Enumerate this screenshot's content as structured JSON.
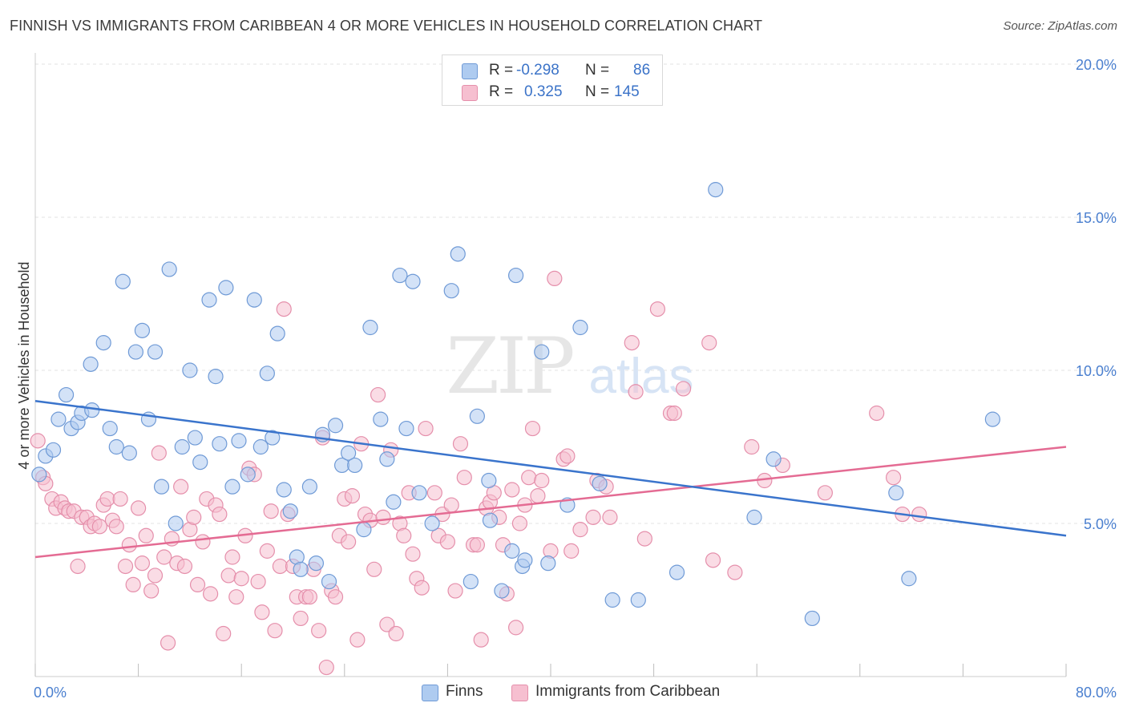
{
  "title": "FINNISH VS IMMIGRANTS FROM CARIBBEAN 4 OR MORE VEHICLES IN HOUSEHOLD CORRELATION CHART",
  "source": "Source: ZipAtlas.com",
  "watermark": {
    "zip": "ZIP",
    "atlas": "atlas"
  },
  "colors": {
    "finns_fill": "#aecbf0",
    "finns_stroke": "#6f9ad6",
    "finns_line": "#3a74cc",
    "carib_fill": "#f6bfd0",
    "carib_stroke": "#e58fab",
    "carib_line": "#e46b93",
    "grid": "#e3e3e3",
    "axis_text": "#4a7fcf"
  },
  "legend": {
    "rows": [
      {
        "r_label": "R =",
        "r_value": "-0.298",
        "n_label": "N =",
        "n_value": "86"
      },
      {
        "r_label": "R =",
        "r_value": "0.325",
        "n_label": "N =",
        "n_value": "145"
      }
    ]
  },
  "bottom_legend": {
    "finns": "Finns",
    "carib": "Immigrants from Caribbean"
  },
  "chart_data": {
    "type": "scatter",
    "xlabel": "",
    "ylabel": "4 or more Vehicles in Household",
    "xlim": [
      0,
      80
    ],
    "ylim": [
      0,
      20
    ],
    "x_tick_labels": {
      "left": "0.0%",
      "right": "80.0%"
    },
    "y_tick_labels": [
      "5.0%",
      "10.0%",
      "15.0%",
      "20.0%"
    ],
    "y_ticks": [
      5,
      10,
      15,
      20
    ],
    "grid": true,
    "legend_position": "top-center",
    "series": [
      {
        "name": "Finns",
        "trend": {
          "x": [
            0,
            80
          ],
          "y": [
            9.0,
            4.6
          ]
        },
        "points": [
          [
            0.3,
            6.6
          ],
          [
            0.8,
            7.2
          ],
          [
            1.4,
            7.4
          ],
          [
            1.8,
            8.4
          ],
          [
            2.4,
            9.2
          ],
          [
            2.8,
            8.1
          ],
          [
            3.3,
            8.3
          ],
          [
            3.6,
            8.6
          ],
          [
            4.4,
            8.7
          ],
          [
            4.3,
            10.2
          ],
          [
            5.3,
            10.9
          ],
          [
            5.8,
            8.1
          ],
          [
            6.3,
            7.5
          ],
          [
            6.8,
            12.9
          ],
          [
            7.3,
            7.3
          ],
          [
            7.8,
            10.6
          ],
          [
            8.3,
            11.3
          ],
          [
            8.8,
            8.4
          ],
          [
            9.3,
            10.6
          ],
          [
            9.8,
            6.2
          ],
          [
            10.4,
            13.3
          ],
          [
            10.9,
            5.0
          ],
          [
            11.4,
            7.5
          ],
          [
            12.0,
            10.0
          ],
          [
            12.4,
            7.8
          ],
          [
            12.8,
            7.0
          ],
          [
            13.5,
            12.3
          ],
          [
            14.0,
            9.8
          ],
          [
            14.3,
            7.6
          ],
          [
            14.8,
            12.7
          ],
          [
            15.3,
            6.2
          ],
          [
            15.8,
            7.7
          ],
          [
            16.5,
            6.6
          ],
          [
            17.0,
            12.3
          ],
          [
            17.5,
            7.5
          ],
          [
            18.0,
            9.9
          ],
          [
            18.4,
            7.8
          ],
          [
            18.8,
            11.2
          ],
          [
            19.3,
            6.1
          ],
          [
            19.8,
            5.4
          ],
          [
            20.3,
            3.9
          ],
          [
            20.6,
            3.5
          ],
          [
            21.3,
            6.2
          ],
          [
            21.8,
            3.7
          ],
          [
            22.3,
            7.9
          ],
          [
            22.8,
            3.1
          ],
          [
            23.3,
            8.2
          ],
          [
            23.8,
            6.9
          ],
          [
            24.3,
            7.3
          ],
          [
            24.8,
            6.9
          ],
          [
            25.5,
            4.8
          ],
          [
            26.0,
            11.4
          ],
          [
            26.8,
            8.4
          ],
          [
            27.3,
            7.1
          ],
          [
            27.8,
            5.7
          ],
          [
            28.3,
            13.1
          ],
          [
            28.8,
            8.1
          ],
          [
            29.3,
            12.9
          ],
          [
            29.8,
            6.0
          ],
          [
            30.8,
            5.0
          ],
          [
            32.3,
            12.6
          ],
          [
            32.8,
            13.8
          ],
          [
            33.8,
            3.1
          ],
          [
            34.3,
            8.5
          ],
          [
            35.2,
            6.4
          ],
          [
            35.3,
            5.1
          ],
          [
            36.2,
            2.8
          ],
          [
            37.3,
            13.1
          ],
          [
            37.0,
            4.1
          ],
          [
            37.8,
            3.6
          ],
          [
            38.0,
            3.8
          ],
          [
            39.3,
            10.6
          ],
          [
            39.8,
            3.7
          ],
          [
            41.3,
            5.6
          ],
          [
            42.3,
            11.4
          ],
          [
            43.8,
            6.3
          ],
          [
            44.8,
            2.5
          ],
          [
            46.8,
            2.5
          ],
          [
            49.8,
            3.4
          ],
          [
            52.8,
            15.9
          ],
          [
            55.8,
            5.2
          ],
          [
            57.3,
            7.1
          ],
          [
            60.3,
            1.9
          ],
          [
            66.8,
            6.0
          ],
          [
            67.8,
            3.2
          ],
          [
            74.3,
            8.4
          ]
        ]
      },
      {
        "name": "Immigrants from Caribbean",
        "trend": {
          "x": [
            0,
            80
          ],
          "y": [
            3.9,
            7.5
          ]
        },
        "points": [
          [
            0.2,
            7.7
          ],
          [
            0.6,
            6.5
          ],
          [
            0.8,
            6.3
          ],
          [
            1.3,
            5.8
          ],
          [
            1.6,
            5.5
          ],
          [
            2.0,
            5.7
          ],
          [
            2.3,
            5.5
          ],
          [
            2.6,
            5.4
          ],
          [
            3.0,
            5.4
          ],
          [
            3.3,
            3.6
          ],
          [
            3.6,
            5.2
          ],
          [
            4.0,
            5.2
          ],
          [
            4.3,
            4.9
          ],
          [
            4.6,
            5.0
          ],
          [
            5.0,
            4.9
          ],
          [
            5.3,
            5.6
          ],
          [
            5.6,
            5.8
          ],
          [
            6.0,
            5.1
          ],
          [
            6.3,
            4.9
          ],
          [
            6.6,
            5.8
          ],
          [
            7.0,
            3.6
          ],
          [
            7.3,
            4.3
          ],
          [
            7.6,
            3.0
          ],
          [
            8.0,
            5.5
          ],
          [
            8.3,
            3.7
          ],
          [
            8.6,
            4.6
          ],
          [
            9.0,
            2.8
          ],
          [
            9.3,
            3.3
          ],
          [
            9.6,
            7.3
          ],
          [
            10.0,
            3.9
          ],
          [
            10.3,
            1.1
          ],
          [
            10.6,
            4.5
          ],
          [
            11.0,
            3.7
          ],
          [
            11.3,
            6.2
          ],
          [
            11.6,
            3.6
          ],
          [
            12.0,
            4.8
          ],
          [
            12.3,
            5.2
          ],
          [
            12.6,
            3.0
          ],
          [
            13.0,
            4.4
          ],
          [
            13.3,
            5.8
          ],
          [
            13.6,
            2.7
          ],
          [
            14.0,
            5.6
          ],
          [
            14.3,
            5.3
          ],
          [
            14.6,
            1.4
          ],
          [
            15.0,
            3.3
          ],
          [
            15.3,
            3.9
          ],
          [
            15.6,
            2.6
          ],
          [
            16.0,
            3.2
          ],
          [
            16.3,
            4.6
          ],
          [
            16.6,
            6.8
          ],
          [
            17.0,
            6.6
          ],
          [
            17.3,
            3.1
          ],
          [
            17.6,
            2.1
          ],
          [
            18.0,
            4.1
          ],
          [
            18.3,
            5.4
          ],
          [
            18.6,
            1.5
          ],
          [
            19.0,
            3.6
          ],
          [
            19.3,
            12.0
          ],
          [
            19.6,
            5.3
          ],
          [
            20.0,
            3.6
          ],
          [
            20.3,
            2.6
          ],
          [
            20.6,
            1.9
          ],
          [
            21.0,
            2.6
          ],
          [
            21.3,
            2.6
          ],
          [
            21.6,
            3.5
          ],
          [
            22.0,
            1.5
          ],
          [
            22.3,
            7.8
          ],
          [
            22.6,
            0.3
          ],
          [
            23.0,
            2.8
          ],
          [
            23.3,
            2.6
          ],
          [
            23.6,
            4.6
          ],
          [
            24.0,
            5.8
          ],
          [
            24.3,
            4.4
          ],
          [
            24.6,
            5.9
          ],
          [
            25.0,
            1.2
          ],
          [
            25.3,
            7.6
          ],
          [
            25.6,
            5.3
          ],
          [
            26.0,
            5.1
          ],
          [
            26.3,
            3.5
          ],
          [
            26.6,
            9.2
          ],
          [
            27.0,
            5.2
          ],
          [
            27.3,
            1.7
          ],
          [
            27.6,
            7.4
          ],
          [
            28.0,
            1.4
          ],
          [
            28.3,
            5.0
          ],
          [
            28.6,
            4.6
          ],
          [
            29.0,
            6.0
          ],
          [
            29.3,
            4.0
          ],
          [
            29.6,
            3.2
          ],
          [
            30.0,
            2.9
          ],
          [
            30.3,
            8.1
          ],
          [
            31.0,
            6.0
          ],
          [
            31.3,
            4.6
          ],
          [
            31.6,
            5.3
          ],
          [
            32.0,
            4.4
          ],
          [
            32.3,
            5.6
          ],
          [
            32.6,
            2.8
          ],
          [
            33.0,
            7.6
          ],
          [
            33.3,
            6.5
          ],
          [
            34.0,
            4.3
          ],
          [
            34.3,
            4.3
          ],
          [
            34.6,
            1.2
          ],
          [
            35.0,
            5.5
          ],
          [
            35.3,
            5.7
          ],
          [
            35.6,
            6.0
          ],
          [
            36.0,
            5.2
          ],
          [
            36.3,
            4.3
          ],
          [
            36.6,
            2.7
          ],
          [
            37.0,
            6.1
          ],
          [
            37.3,
            1.6
          ],
          [
            37.6,
            5.0
          ],
          [
            38.0,
            5.6
          ],
          [
            38.3,
            6.5
          ],
          [
            38.6,
            8.1
          ],
          [
            39.0,
            5.9
          ],
          [
            39.3,
            6.4
          ],
          [
            40.0,
            4.1
          ],
          [
            40.3,
            13.0
          ],
          [
            41.0,
            7.1
          ],
          [
            41.3,
            7.2
          ],
          [
            41.6,
            4.1
          ],
          [
            42.3,
            4.8
          ],
          [
            43.3,
            5.2
          ],
          [
            43.6,
            6.4
          ],
          [
            44.3,
            6.2
          ],
          [
            44.6,
            5.2
          ],
          [
            46.3,
            10.9
          ],
          [
            46.6,
            9.3
          ],
          [
            47.3,
            4.5
          ],
          [
            48.3,
            12.0
          ],
          [
            49.3,
            8.6
          ],
          [
            49.6,
            8.6
          ],
          [
            50.3,
            9.4
          ],
          [
            52.3,
            10.9
          ],
          [
            52.6,
            3.8
          ],
          [
            54.3,
            3.4
          ],
          [
            55.6,
            7.5
          ],
          [
            56.6,
            6.4
          ],
          [
            58.0,
            6.9
          ],
          [
            61.3,
            6.0
          ],
          [
            65.3,
            8.6
          ],
          [
            66.6,
            6.5
          ],
          [
            67.3,
            5.3
          ],
          [
            68.6,
            5.3
          ]
        ]
      }
    ]
  }
}
